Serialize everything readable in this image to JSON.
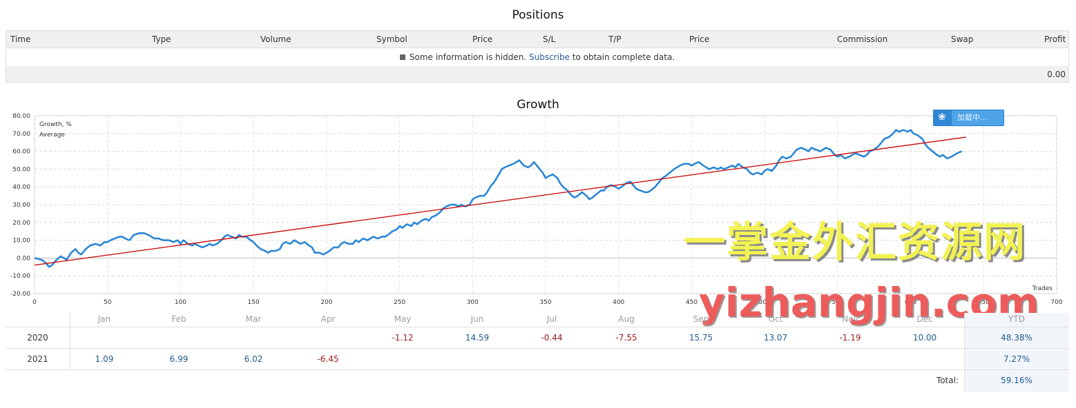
{
  "positions": {
    "title": "Positions",
    "columns": [
      "Time",
      "Type",
      "Volume",
      "Symbol",
      "Price",
      "S/L",
      "T/P",
      "Price",
      "Commission",
      "Swap",
      "Profit"
    ],
    "info_text": "Some information is hidden.",
    "info_link": "Subscribe",
    "info_tail": "to obtain complete data.",
    "total_profit": "0.00"
  },
  "growth": {
    "title": "Growth",
    "badge_label": "加载中..."
  },
  "chart_data": {
    "type": "line",
    "xlabel": "Trades",
    "ylabel": "",
    "xlim": [
      0,
      700
    ],
    "ylim": [
      -20,
      80
    ],
    "x_ticks": [
      0,
      50,
      100,
      150,
      200,
      250,
      300,
      350,
      400,
      450,
      500,
      550,
      600,
      650,
      700
    ],
    "y_ticks": [
      80,
      70,
      60,
      50,
      40,
      30,
      20,
      10,
      0,
      -10,
      -20
    ],
    "grid": true,
    "legend_position": "top-left",
    "series": [
      {
        "name": "Growth, %",
        "color": "#2a86d6",
        "points": [
          [
            0,
            0
          ],
          [
            5,
            -1
          ],
          [
            8,
            -3
          ],
          [
            10,
            -5
          ],
          [
            12,
            -4
          ],
          [
            15,
            -1
          ],
          [
            18,
            1
          ],
          [
            20,
            0
          ],
          [
            22,
            -1
          ],
          [
            25,
            3
          ],
          [
            28,
            5
          ],
          [
            30,
            3
          ],
          [
            32,
            2
          ],
          [
            35,
            5
          ],
          [
            38,
            7
          ],
          [
            42,
            8
          ],
          [
            45,
            7
          ],
          [
            48,
            9
          ],
          [
            50,
            9
          ],
          [
            52,
            10
          ],
          [
            55,
            11
          ],
          [
            58,
            12
          ],
          [
            60,
            12
          ],
          [
            62,
            11
          ],
          [
            65,
            10
          ],
          [
            68,
            13
          ],
          [
            72,
            14
          ],
          [
            75,
            14
          ],
          [
            78,
            13
          ],
          [
            80,
            12
          ],
          [
            82,
            11
          ],
          [
            85,
            11
          ],
          [
            88,
            10
          ],
          [
            92,
            10
          ],
          [
            95,
            9
          ],
          [
            98,
            10
          ],
          [
            100,
            8
          ],
          [
            102,
            10
          ],
          [
            105,
            8
          ],
          [
            108,
            7
          ],
          [
            110,
            8
          ],
          [
            112,
            7
          ],
          [
            115,
            6
          ],
          [
            118,
            7
          ],
          [
            120,
            8
          ],
          [
            122,
            7
          ],
          [
            125,
            8
          ],
          [
            128,
            10
          ],
          [
            130,
            12
          ],
          [
            132,
            13
          ],
          [
            135,
            12
          ],
          [
            138,
            11
          ],
          [
            140,
            13
          ],
          [
            142,
            12
          ],
          [
            145,
            12
          ],
          [
            148,
            10
          ],
          [
            150,
            9
          ],
          [
            152,
            7
          ],
          [
            155,
            5
          ],
          [
            158,
            4
          ],
          [
            160,
            3
          ],
          [
            162,
            4
          ],
          [
            165,
            4
          ],
          [
            168,
            5
          ],
          [
            170,
            8
          ],
          [
            172,
            9
          ],
          [
            175,
            8
          ],
          [
            178,
            10
          ],
          [
            180,
            9
          ],
          [
            182,
            8
          ],
          [
            185,
            9
          ],
          [
            188,
            7
          ],
          [
            190,
            6
          ],
          [
            192,
            3
          ],
          [
            195,
            3
          ],
          [
            198,
            2
          ],
          [
            200,
            3
          ],
          [
            202,
            4
          ],
          [
            205,
            6
          ],
          [
            208,
            6
          ],
          [
            210,
            8
          ],
          [
            212,
            9
          ],
          [
            215,
            8
          ],
          [
            218,
            8
          ],
          [
            220,
            10
          ],
          [
            222,
            9
          ],
          [
            225,
            11
          ],
          [
            228,
            10
          ],
          [
            230,
            11
          ],
          [
            232,
            12
          ],
          [
            235,
            11
          ],
          [
            238,
            12
          ],
          [
            240,
            12
          ],
          [
            242,
            13
          ],
          [
            245,
            15
          ],
          [
            248,
            16
          ],
          [
            250,
            18
          ],
          [
            252,
            17
          ],
          [
            255,
            19
          ],
          [
            258,
            18
          ],
          [
            260,
            20
          ],
          [
            262,
            19
          ],
          [
            265,
            21
          ],
          [
            268,
            22
          ],
          [
            270,
            21
          ],
          [
            272,
            23
          ],
          [
            275,
            24
          ],
          [
            278,
            26
          ],
          [
            280,
            28
          ],
          [
            282,
            29
          ],
          [
            285,
            30
          ],
          [
            288,
            30
          ],
          [
            290,
            29
          ],
          [
            292,
            30
          ],
          [
            295,
            29
          ],
          [
            298,
            30
          ],
          [
            300,
            33
          ],
          [
            302,
            34
          ],
          [
            305,
            35
          ],
          [
            308,
            35
          ],
          [
            310,
            37
          ],
          [
            312,
            40
          ],
          [
            315,
            43
          ],
          [
            318,
            47
          ],
          [
            320,
            50
          ],
          [
            322,
            51
          ],
          [
            325,
            52
          ],
          [
            328,
            53
          ],
          [
            330,
            54
          ],
          [
            332,
            55
          ],
          [
            335,
            52
          ],
          [
            338,
            51
          ],
          [
            340,
            52
          ],
          [
            342,
            54
          ],
          [
            345,
            51
          ],
          [
            348,
            48
          ],
          [
            350,
            45
          ],
          [
            352,
            46
          ],
          [
            355,
            47
          ],
          [
            358,
            45
          ],
          [
            360,
            42
          ],
          [
            362,
            40
          ],
          [
            365,
            38
          ],
          [
            368,
            35
          ],
          [
            370,
            34
          ],
          [
            372,
            35
          ],
          [
            375,
            37
          ],
          [
            378,
            35
          ],
          [
            380,
            33
          ],
          [
            382,
            34
          ],
          [
            385,
            36
          ],
          [
            388,
            38
          ],
          [
            390,
            38
          ],
          [
            392,
            40
          ],
          [
            395,
            41
          ],
          [
            398,
            40
          ],
          [
            400,
            39
          ],
          [
            402,
            40
          ],
          [
            405,
            42
          ],
          [
            408,
            43
          ],
          [
            410,
            41
          ],
          [
            412,
            39
          ],
          [
            415,
            38
          ],
          [
            418,
            37
          ],
          [
            420,
            37
          ],
          [
            422,
            38
          ],
          [
            425,
            40
          ],
          [
            428,
            43
          ],
          [
            430,
            45
          ],
          [
            432,
            46
          ],
          [
            435,
            48
          ],
          [
            438,
            50
          ],
          [
            440,
            51
          ],
          [
            442,
            52
          ],
          [
            445,
            53
          ],
          [
            448,
            53
          ],
          [
            450,
            52
          ],
          [
            452,
            53
          ],
          [
            455,
            54
          ],
          [
            458,
            52
          ],
          [
            460,
            51
          ],
          [
            462,
            50
          ],
          [
            465,
            51
          ],
          [
            468,
            50
          ],
          [
            470,
            51
          ],
          [
            472,
            50
          ],
          [
            475,
            51
          ],
          [
            478,
            52
          ],
          [
            480,
            51
          ],
          [
            482,
            53
          ],
          [
            485,
            51
          ],
          [
            488,
            50
          ],
          [
            490,
            48
          ],
          [
            492,
            47
          ],
          [
            495,
            48
          ],
          [
            498,
            47
          ],
          [
            500,
            49
          ],
          [
            502,
            50
          ],
          [
            505,
            49
          ],
          [
            508,
            52
          ],
          [
            510,
            55
          ],
          [
            512,
            57
          ],
          [
            515,
            56
          ],
          [
            518,
            57
          ],
          [
            520,
            59
          ],
          [
            522,
            61
          ],
          [
            525,
            62
          ],
          [
            528,
            61
          ],
          [
            530,
            60
          ],
          [
            532,
            62
          ],
          [
            535,
            61
          ],
          [
            538,
            60
          ],
          [
            540,
            61
          ],
          [
            542,
            62
          ],
          [
            545,
            61
          ],
          [
            548,
            58
          ],
          [
            550,
            57
          ],
          [
            552,
            58
          ],
          [
            555,
            56
          ],
          [
            558,
            57
          ],
          [
            560,
            58
          ],
          [
            562,
            59
          ],
          [
            565,
            58
          ],
          [
            568,
            57
          ],
          [
            570,
            58
          ],
          [
            572,
            60
          ],
          [
            575,
            61
          ],
          [
            578,
            63
          ],
          [
            580,
            65
          ],
          [
            582,
            67
          ],
          [
            585,
            68
          ],
          [
            588,
            70
          ],
          [
            590,
            72
          ],
          [
            592,
            71
          ],
          [
            595,
            72
          ],
          [
            598,
            71
          ],
          [
            600,
            72
          ],
          [
            602,
            70
          ],
          [
            605,
            69
          ],
          [
            608,
            67
          ],
          [
            610,
            64
          ],
          [
            612,
            62
          ],
          [
            615,
            60
          ],
          [
            618,
            58
          ],
          [
            620,
            57
          ],
          [
            622,
            58
          ],
          [
            625,
            56
          ],
          [
            628,
            57
          ],
          [
            630,
            58
          ],
          [
            632,
            59
          ],
          [
            635,
            60
          ]
        ]
      },
      {
        "name": "Average",
        "color": "#cc1111",
        "points": [
          [
            0,
            -4
          ],
          [
            638,
            68
          ]
        ]
      }
    ]
  },
  "yearly": {
    "months": [
      "Jan",
      "Feb",
      "Mar",
      "Apr",
      "May",
      "Jun",
      "Jul",
      "Aug",
      "Sep",
      "Oct",
      "Nov",
      "Dec"
    ],
    "ytd_label": "YTD",
    "rows": [
      {
        "year": "2020",
        "values": [
          "",
          "",
          "",
          "",
          "-1.12",
          "14.59",
          "-0.44",
          "-7.55",
          "15.75",
          "13.07",
          "-1.19",
          "10.00"
        ],
        "ytd": "48.38%"
      },
      {
        "year": "2021",
        "values": [
          "1.09",
          "6.99",
          "6.02",
          "-6.45",
          "",
          "",
          "",
          "",
          "",
          "",
          "",
          ""
        ],
        "ytd": "7.27%"
      }
    ],
    "total_label": "Total:",
    "total_value": "59.16%"
  },
  "watermark": {
    "line1": "一掌金外汇资源网",
    "line2": "yizhangjin.com"
  }
}
